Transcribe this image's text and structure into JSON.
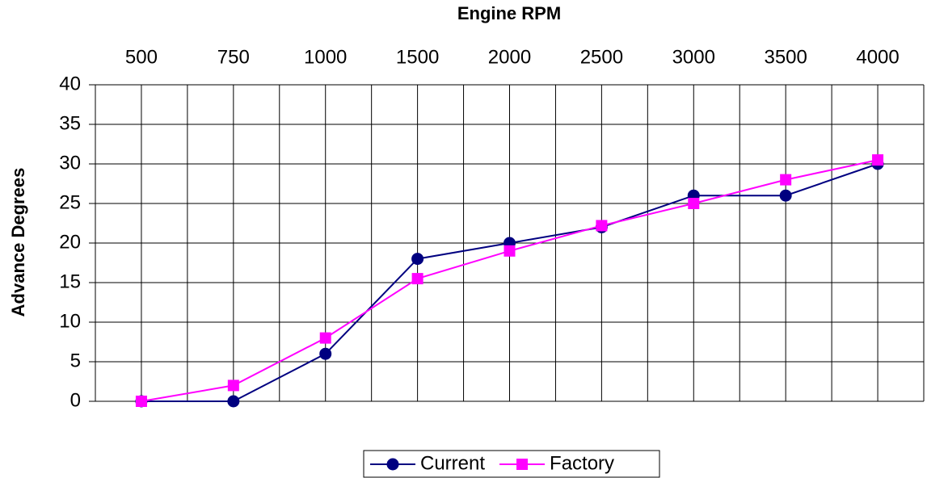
{
  "chart_data": {
    "type": "line",
    "x_label": "Engine RPM",
    "y_label": "Advance Degrees",
    "categories": [
      "500",
      "750",
      "1000",
      "1500",
      "2000",
      "2500",
      "3000",
      "3500",
      "4000"
    ],
    "series": [
      {
        "name": "Current",
        "color": "#000080",
        "marker": "circle",
        "values": [
          0,
          0,
          6,
          18,
          20,
          22,
          26,
          26,
          30
        ]
      },
      {
        "name": "Factory",
        "color": "#ff00ff",
        "marker": "square",
        "values": [
          0,
          2,
          8,
          15.5,
          19,
          22.2,
          25,
          28,
          30.5
        ]
      }
    ],
    "ylim": [
      0,
      40
    ],
    "yticks": [
      0,
      5,
      10,
      15,
      20,
      25,
      30,
      35,
      40
    ],
    "grid": true,
    "legend": "bottom"
  }
}
